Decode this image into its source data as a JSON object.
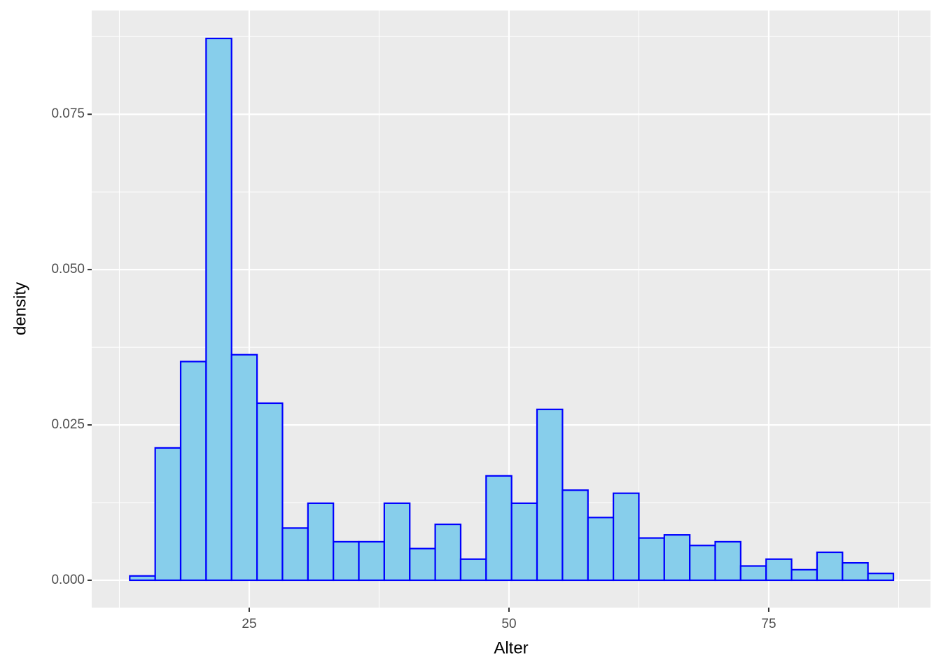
{
  "chart_data": {
    "type": "histogram",
    "x_label": "Alter",
    "y_label": "density",
    "bins": [
      13.5,
      15.95,
      18.4,
      20.85,
      23.3,
      25.75,
      28.2,
      30.65,
      33.1,
      35.55,
      38.0,
      40.45,
      42.9,
      45.35,
      47.8,
      50.25,
      52.7,
      55.15,
      57.6,
      60.05,
      62.5,
      64.95,
      67.4,
      69.85,
      72.3,
      74.75,
      77.2,
      79.65,
      82.1,
      84.55,
      87.0
    ],
    "values": [
      0.0007,
      0.0213,
      0.0352,
      0.0872,
      0.0363,
      0.0285,
      0.0084,
      0.0124,
      0.0062,
      0.0062,
      0.0124,
      0.0051,
      0.009,
      0.0034,
      0.0168,
      0.0124,
      0.0275,
      0.0145,
      0.0101,
      0.014,
      0.0068,
      0.0073,
      0.0056,
      0.0062,
      0.0023,
      0.0034,
      0.0017,
      0.0045,
      0.0028,
      0.0011
    ],
    "color": "#87ceeb",
    "edge_color": "#0000ff",
    "xlim": [
      9.84,
      90.57
    ],
    "ylim": [
      -0.0044,
      0.0917
    ],
    "xticks": [
      25,
      50,
      75
    ],
    "yticks": [
      {
        "value": 0,
        "label": "0.000"
      },
      {
        "value": 0.025,
        "label": "0.025"
      },
      {
        "value": 0.05,
        "label": "0.050"
      },
      {
        "value": 0.075,
        "label": "0.075"
      }
    ],
    "x_minor_ticks": [
      12.5,
      37.5,
      62.5,
      87.5
    ],
    "y_minor_ticks": [
      0.0125,
      0.0375,
      0.0625,
      0.0875
    ],
    "grid": true
  }
}
